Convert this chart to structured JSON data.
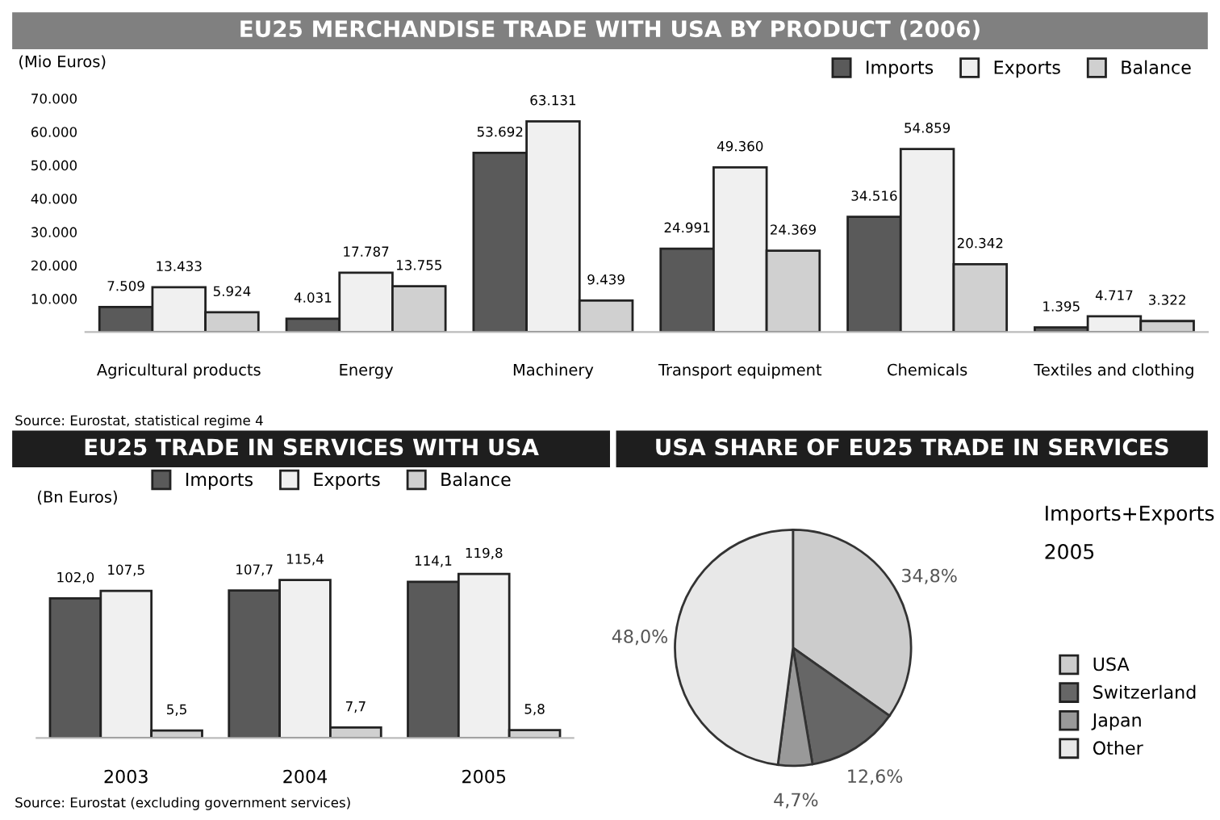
{
  "chart_data": [
    {
      "type": "bar",
      "title": "EU25 MERCHANDISE TRADE WITH USA BY PRODUCT (2006)",
      "ylabel": "(Mio Euros)",
      "categories": [
        "Agricultural products",
        "Energy",
        "Machinery",
        "Transport equipment",
        "Chemicals",
        "Textiles and clothing"
      ],
      "series": [
        {
          "name": "Imports",
          "color": "#5a5a5a",
          "values": [
            7509,
            4031,
            53692,
            24991,
            34516,
            1395
          ],
          "value_labels": [
            "7.509",
            "4.031",
            "53.692",
            "24.991",
            "34.516",
            "1.395"
          ]
        },
        {
          "name": "Exports",
          "color": "#f0f0f0",
          "values": [
            13433,
            17787,
            63131,
            49360,
            54859,
            4717
          ],
          "value_labels": [
            "13.433",
            "17.787",
            "63.131",
            "49.360",
            "54.859",
            "4.717"
          ]
        },
        {
          "name": "Balance",
          "color": "#d0d0d0",
          "values": [
            5924,
            13755,
            9439,
            24369,
            20342,
            3322
          ],
          "value_labels": [
            "5.924",
            "13.755",
            "9.439",
            "24.369",
            "20.342",
            "3.322"
          ]
        }
      ],
      "ylim": [
        0,
        70000
      ],
      "yticks": [
        {
          "value": 10000,
          "label": "10.000"
        },
        {
          "value": 20000,
          "label": "20.000"
        },
        {
          "value": 30000,
          "label": "30.000"
        },
        {
          "value": 40000,
          "label": "40.000"
        },
        {
          "value": 50000,
          "label": "50.000"
        },
        {
          "value": 60000,
          "label": "60.000"
        },
        {
          "value": 70000,
          "label": "70.000"
        }
      ],
      "legend": "top right",
      "annotations": [
        "Source: Eurostat, statistical regime 4"
      ]
    },
    {
      "type": "bar",
      "title": "EU25 TRADE IN SERVICES WITH USA",
      "ylabel": "(Bn Euros)",
      "categories": [
        "2003",
        "2004",
        "2005"
      ],
      "series": [
        {
          "name": "Imports",
          "color": "#5a5a5a",
          "values": [
            102.0,
            107.7,
            114.1
          ],
          "value_labels": [
            "102,0",
            "107,7",
            "114,1"
          ]
        },
        {
          "name": "Exports",
          "color": "#f0f0f0",
          "values": [
            107.5,
            115.4,
            119.8
          ],
          "value_labels": [
            "107,5",
            "115,4",
            "119,8"
          ]
        },
        {
          "name": "Balance",
          "color": "#d0d0d0",
          "values": [
            5.5,
            7.7,
            5.8
          ],
          "value_labels": [
            "5,5",
            "7,7",
            "5,8"
          ]
        }
      ],
      "tick_labels": "x",
      "legend": "top",
      "annotations": [
        "Source: Eurostat (excluding government services)"
      ]
    },
    {
      "type": "pie",
      "title": "USA SHARE OF EU25 TRADE IN SERVICES",
      "subtitle": "Imports+Exports",
      "categories": [
        "USA",
        "Switzerland",
        "Japan",
        "Other"
      ],
      "values": [
        34.8,
        12.6,
        4.7,
        48.0
      ],
      "value_labels": [
        "34,8%",
        "12,6%",
        "4,7%",
        "48,0%"
      ],
      "colors": [
        "#cccccc",
        "#666666",
        "#999999",
        "#e8e8e8"
      ],
      "legend": "right",
      "annotations": [
        "2005"
      ]
    }
  ]
}
